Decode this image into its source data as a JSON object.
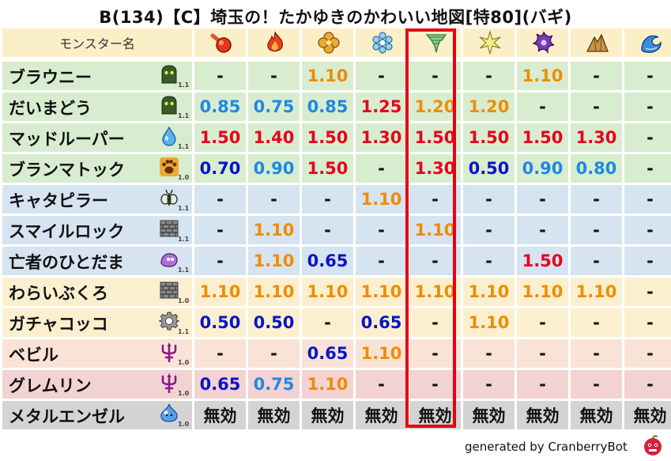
{
  "title": "B(134)【C】埼玉の！たかゆきのかわいい地図[特80](バギ)",
  "header_label": "モンスター名",
  "elements": [
    "fire-ball-icon",
    "flame-icon",
    "earth-clover-icon",
    "ice-snowflake-icon",
    "wind-tornado-icon",
    "light-burst-icon",
    "dark-shuriken-icon",
    "rock-mountain-icon",
    "water-wave-icon"
  ],
  "highlighted_column_index": 4,
  "colors": {
    "dash": "#111111",
    "orange": "#f08c00",
    "blue": "#1e88e5",
    "navy": "#0a14c8",
    "red": "#e6001e",
    "nullify": "#111111"
  },
  "rows": [
    {
      "name": "ブラウニー",
      "icon": "zombie-slime-icon",
      "lv": "1.1",
      "bg": "#d8edcf",
      "values": [
        {
          "t": "-",
          "c": "dash"
        },
        {
          "t": "-",
          "c": "dash"
        },
        {
          "t": "1.10",
          "c": "orange"
        },
        {
          "t": "-",
          "c": "dash"
        },
        {
          "t": "-",
          "c": "dash"
        },
        {
          "t": "-",
          "c": "dash"
        },
        {
          "t": "1.10",
          "c": "orange"
        },
        {
          "t": "-",
          "c": "dash"
        },
        {
          "t": "-",
          "c": "dash"
        }
      ]
    },
    {
      "name": "だいまどう",
      "icon": "zombie-slime-icon",
      "lv": "1.1",
      "bg": "#d8edcf",
      "values": [
        {
          "t": "0.85",
          "c": "blue"
        },
        {
          "t": "0.75",
          "c": "blue"
        },
        {
          "t": "0.85",
          "c": "blue"
        },
        {
          "t": "1.25",
          "c": "red"
        },
        {
          "t": "1.20",
          "c": "orange"
        },
        {
          "t": "1.20",
          "c": "orange"
        },
        {
          "t": "-",
          "c": "dash"
        },
        {
          "t": "-",
          "c": "dash"
        },
        {
          "t": "-",
          "c": "dash"
        }
      ]
    },
    {
      "name": "マッドルーパー",
      "icon": "water-drop-icon",
      "lv": "1.1",
      "bg": "#d8edcf",
      "values": [
        {
          "t": "1.50",
          "c": "red"
        },
        {
          "t": "1.40",
          "c": "red"
        },
        {
          "t": "1.50",
          "c": "red"
        },
        {
          "t": "1.30",
          "c": "red"
        },
        {
          "t": "1.50",
          "c": "red"
        },
        {
          "t": "1.50",
          "c": "red"
        },
        {
          "t": "1.50",
          "c": "red"
        },
        {
          "t": "1.30",
          "c": "red"
        },
        {
          "t": "-",
          "c": "dash"
        }
      ]
    },
    {
      "name": "ブランマトック",
      "icon": "paw-icon",
      "lv": "1.0",
      "bg": "#d8edcf",
      "values": [
        {
          "t": "0.70",
          "c": "navy"
        },
        {
          "t": "0.90",
          "c": "blue"
        },
        {
          "t": "1.50",
          "c": "red"
        },
        {
          "t": "-",
          "c": "dash"
        },
        {
          "t": "1.30",
          "c": "red"
        },
        {
          "t": "0.50",
          "c": "navy"
        },
        {
          "t": "0.90",
          "c": "blue"
        },
        {
          "t": "0.80",
          "c": "blue"
        },
        {
          "t": "-",
          "c": "dash"
        }
      ]
    },
    {
      "name": "キャタピラー",
      "icon": "insect-icon",
      "lv": "1.1",
      "bg": "#d6e3f0",
      "values": [
        {
          "t": "-",
          "c": "dash"
        },
        {
          "t": "-",
          "c": "dash"
        },
        {
          "t": "-",
          "c": "dash"
        },
        {
          "t": "1.10",
          "c": "orange"
        },
        {
          "t": "-",
          "c": "dash"
        },
        {
          "t": "-",
          "c": "dash"
        },
        {
          "t": "-",
          "c": "dash"
        },
        {
          "t": "-",
          "c": "dash"
        },
        {
          "t": "-",
          "c": "dash"
        }
      ]
    },
    {
      "name": "スマイルロック",
      "icon": "brick-icon",
      "lv": "1.1",
      "bg": "#d6e3f0",
      "values": [
        {
          "t": "-",
          "c": "dash"
        },
        {
          "t": "1.10",
          "c": "orange"
        },
        {
          "t": "-",
          "c": "dash"
        },
        {
          "t": "-",
          "c": "dash"
        },
        {
          "t": "1.10",
          "c": "orange"
        },
        {
          "t": "-",
          "c": "dash"
        },
        {
          "t": "-",
          "c": "dash"
        },
        {
          "t": "-",
          "c": "dash"
        },
        {
          "t": "-",
          "c": "dash"
        }
      ]
    },
    {
      "name": "亡者のひとだま",
      "icon": "ghost-flame-icon",
      "lv": "1.1",
      "bg": "#d6e3f0",
      "values": [
        {
          "t": "-",
          "c": "dash"
        },
        {
          "t": "1.10",
          "c": "orange"
        },
        {
          "t": "0.65",
          "c": "navy"
        },
        {
          "t": "-",
          "c": "dash"
        },
        {
          "t": "-",
          "c": "dash"
        },
        {
          "t": "-",
          "c": "dash"
        },
        {
          "t": "1.50",
          "c": "red"
        },
        {
          "t": "-",
          "c": "dash"
        },
        {
          "t": "-",
          "c": "dash"
        }
      ]
    },
    {
      "name": "わらいぶくろ",
      "icon": "brick-icon",
      "lv": "1.0",
      "bg": "#fbefcf",
      "values": [
        {
          "t": "1.10",
          "c": "orange"
        },
        {
          "t": "1.10",
          "c": "orange"
        },
        {
          "t": "1.10",
          "c": "orange"
        },
        {
          "t": "1.10",
          "c": "orange"
        },
        {
          "t": "1.10",
          "c": "orange"
        },
        {
          "t": "1.10",
          "c": "orange"
        },
        {
          "t": "1.10",
          "c": "orange"
        },
        {
          "t": "1.10",
          "c": "orange"
        },
        {
          "t": "-",
          "c": "dash"
        }
      ]
    },
    {
      "name": "ガチャコッコ",
      "icon": "gear-icon",
      "lv": "1.1",
      "bg": "#fbefcf",
      "values": [
        {
          "t": "0.50",
          "c": "navy"
        },
        {
          "t": "0.50",
          "c": "navy"
        },
        {
          "t": "-",
          "c": "dash"
        },
        {
          "t": "0.65",
          "c": "navy"
        },
        {
          "t": "-",
          "c": "dash"
        },
        {
          "t": "1.10",
          "c": "orange"
        },
        {
          "t": "-",
          "c": "dash"
        },
        {
          "t": "-",
          "c": "dash"
        },
        {
          "t": "-",
          "c": "dash"
        }
      ]
    },
    {
      "name": "ベビル",
      "icon": "trident-icon",
      "lv": "1.0",
      "bg": "#f9e3d6",
      "values": [
        {
          "t": "-",
          "c": "dash"
        },
        {
          "t": "-",
          "c": "dash"
        },
        {
          "t": "0.65",
          "c": "navy"
        },
        {
          "t": "1.10",
          "c": "orange"
        },
        {
          "t": "-",
          "c": "dash"
        },
        {
          "t": "-",
          "c": "dash"
        },
        {
          "t": "-",
          "c": "dash"
        },
        {
          "t": "-",
          "c": "dash"
        },
        {
          "t": "-",
          "c": "dash"
        }
      ]
    },
    {
      "name": "グレムリン",
      "icon": "trident-icon",
      "lv": "1.0",
      "bg": "#f3d2d2",
      "values": [
        {
          "t": "0.65",
          "c": "navy"
        },
        {
          "t": "0.75",
          "c": "blue"
        },
        {
          "t": "1.10",
          "c": "orange"
        },
        {
          "t": "-",
          "c": "dash"
        },
        {
          "t": "-",
          "c": "dash"
        },
        {
          "t": "-",
          "c": "dash"
        },
        {
          "t": "-",
          "c": "dash"
        },
        {
          "t": "-",
          "c": "dash"
        },
        {
          "t": "-",
          "c": "dash"
        }
      ]
    },
    {
      "name": "メタルエンゼル",
      "icon": "metal-slime-icon",
      "lv": "1.0",
      "bg": "#d4d4d4",
      "values": [
        {
          "t": "無効",
          "c": "nullify"
        },
        {
          "t": "無効",
          "c": "nullify"
        },
        {
          "t": "無効",
          "c": "nullify"
        },
        {
          "t": "無効",
          "c": "nullify"
        },
        {
          "t": "無効",
          "c": "nullify"
        },
        {
          "t": "無効",
          "c": "nullify"
        },
        {
          "t": "無効",
          "c": "nullify"
        },
        {
          "t": "無効",
          "c": "nullify"
        },
        {
          "t": "無効",
          "c": "nullify"
        }
      ]
    }
  ],
  "footer": "generated by CranberryBot",
  "bot_icon": "cranberry-bot-icon"
}
